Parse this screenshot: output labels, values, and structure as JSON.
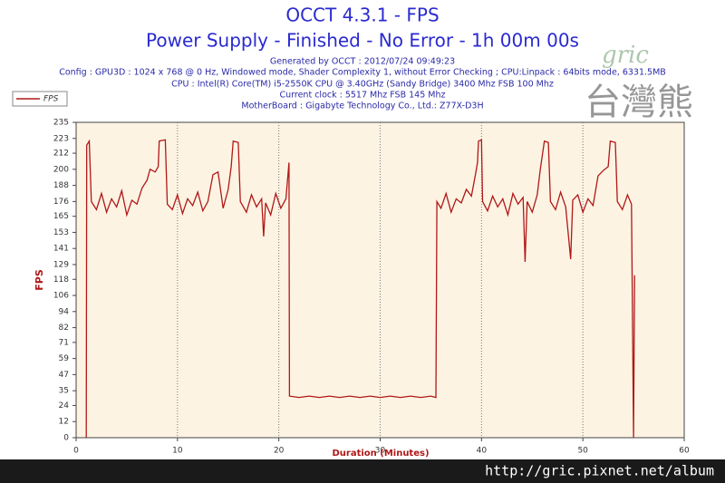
{
  "chart_data": {
    "type": "line",
    "title": "OCCT 4.3.1 - FPS",
    "subtitle": "Power Supply - Finished - No Error - 1h 00m 00s",
    "info": [
      "Generated by OCCT : 2012/07/24 09:49:23",
      "Config : GPU3D : 1024 x 768 @ 0 Hz, Windowed mode, Shader Complexity 1, without Error Checking ; CPU:Linpack : 64bits mode, 6331.5MB",
      "CPU : Intel(R) Core(TM) i5-2550K CPU @ 3.40GHz (Sandy Bridge) 3400 Mhz FSB 100 Mhz",
      "Current clock : 5517 Mhz FSB 145 Mhz",
      "MotherBoard : Gigabyte Technology Co., Ltd.: Z77X-D3H"
    ],
    "xlabel": "Duration (Minutes)",
    "ylabel": "FPS",
    "xlim": [
      0,
      60
    ],
    "xticks": [
      0,
      10,
      20,
      30,
      40,
      50,
      60
    ],
    "ylim": [
      0,
      235
    ],
    "yticks": [
      0,
      12,
      24,
      35,
      47,
      59,
      71,
      82,
      94,
      106,
      118,
      129,
      141,
      153,
      165,
      176,
      188,
      200,
      212,
      223,
      235
    ],
    "grid": "x",
    "legend": "top-left",
    "series": [
      {
        "name": "FPS",
        "color": "#b01818",
        "x": [
          1.0,
          1.05,
          1.3,
          1.5,
          2,
          2.5,
          3,
          3.5,
          4,
          4.5,
          5,
          5.5,
          6,
          6.5,
          7,
          7.3,
          7.8,
          8.1,
          8.2,
          8.8,
          9.0,
          9.5,
          10,
          10.5,
          11,
          11.5,
          12,
          12.5,
          13,
          13.5,
          14,
          14.5,
          15,
          15.3,
          15.5,
          16.0,
          16.2,
          16.8,
          17.3,
          17.8,
          18.3,
          18.5,
          18.7,
          19.2,
          19.7,
          20.2,
          20.7,
          21.0,
          21.05,
          22,
          23,
          24,
          25,
          26,
          27,
          28,
          29,
          30,
          31,
          32,
          33,
          34,
          35,
          35.5,
          35.6,
          36,
          36.5,
          37,
          37.5,
          38,
          38.5,
          39,
          39.4,
          39.6,
          39.7,
          40.0,
          40.1,
          40.6,
          41.1,
          41.6,
          42.1,
          42.6,
          43.1,
          43.6,
          44.1,
          44.3,
          44.5,
          45.0,
          45.5,
          45.8,
          46.2,
          46.6,
          46.8,
          47.3,
          47.8,
          48.3,
          48.8,
          49.0,
          49.5,
          50.0,
          50.5,
          51.0,
          51.5,
          52.0,
          52.5,
          52.7,
          53.2,
          53.4,
          53.9,
          54.4,
          54.8,
          55.0,
          55.1
        ],
        "values": [
          0,
          218,
          221,
          176,
          170,
          182,
          168,
          178,
          172,
          184,
          166,
          177,
          174,
          186,
          192,
          200,
          198,
          202,
          221,
          222,
          174,
          170,
          181,
          167,
          178,
          173,
          183,
          169,
          176,
          196,
          198,
          171,
          185,
          202,
          221,
          220,
          176,
          168,
          181,
          172,
          178,
          150,
          175,
          166,
          182,
          171,
          178,
          205,
          31,
          30,
          31,
          30,
          31,
          30,
          31,
          30,
          31,
          30,
          31,
          30,
          31,
          30,
          31,
          30,
          176,
          171,
          182,
          168,
          178,
          175,
          185,
          180,
          196,
          205,
          221,
          222,
          176,
          169,
          180,
          172,
          178,
          166,
          182,
          174,
          179,
          131,
          176,
          168,
          181,
          200,
          221,
          220,
          176,
          170,
          183,
          172,
          133,
          177,
          181,
          168,
          178,
          173,
          195,
          199,
          202,
          221,
          220,
          176,
          170,
          181,
          174,
          0,
          121
        ]
      }
    ]
  },
  "watermark": {
    "url": "http://gric.pixnet.net/album",
    "logo": "gric",
    "logo_cjk": "台灣熊"
  }
}
